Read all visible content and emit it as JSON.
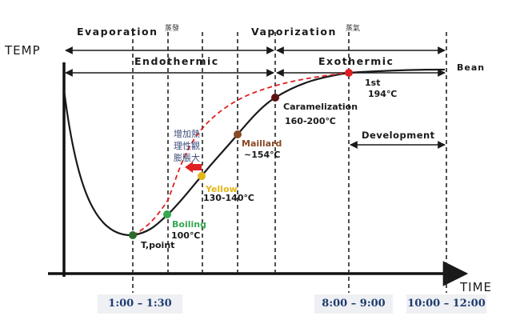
{
  "chart_data": {
    "type": "line",
    "axes": {
      "x_label": "TIME",
      "y_label": "TEMP"
    },
    "phases": {
      "top": [
        {
          "label": "Evaporation",
          "note": "蒸發"
        },
        {
          "label": "Vaporization",
          "note": "蒸氣"
        }
      ],
      "middle": [
        {
          "label": "Endothermic"
        },
        {
          "label": "Exothermic"
        },
        {
          "label": "Bean"
        }
      ],
      "development": "Development"
    },
    "series": [
      {
        "color": "#1a1a1a",
        "style": "solid",
        "points": [
          {
            "name": "T,point",
            "temp": "",
            "color": "#2d6b2d"
          },
          {
            "name": "Boiling",
            "temp": "100℃",
            "color": "#36a852"
          },
          {
            "name": "Yellow",
            "temp": "130-140℃",
            "color": "#e2b719"
          },
          {
            "name": "Maillard",
            "temp": "~154℃",
            "color": "#8a4a24"
          },
          {
            "name": "Caramelization",
            "temp": "160-200℃",
            "color": "#5a1212"
          },
          {
            "name": "1st",
            "temp": "194℃",
            "color": "#e02020"
          }
        ]
      },
      {
        "color": "#e02020",
        "style": "dashed"
      }
    ],
    "annotation": {
      "lines": [
        "增加熱",
        "理性觀",
        "膨脹大"
      ],
      "arrow_color": "#e02020"
    },
    "time_labels": [
      "1:00 – 1:30",
      "8:00 – 9:00",
      "10:00 – 12:00"
    ],
    "grid": false,
    "legend": "none"
  }
}
